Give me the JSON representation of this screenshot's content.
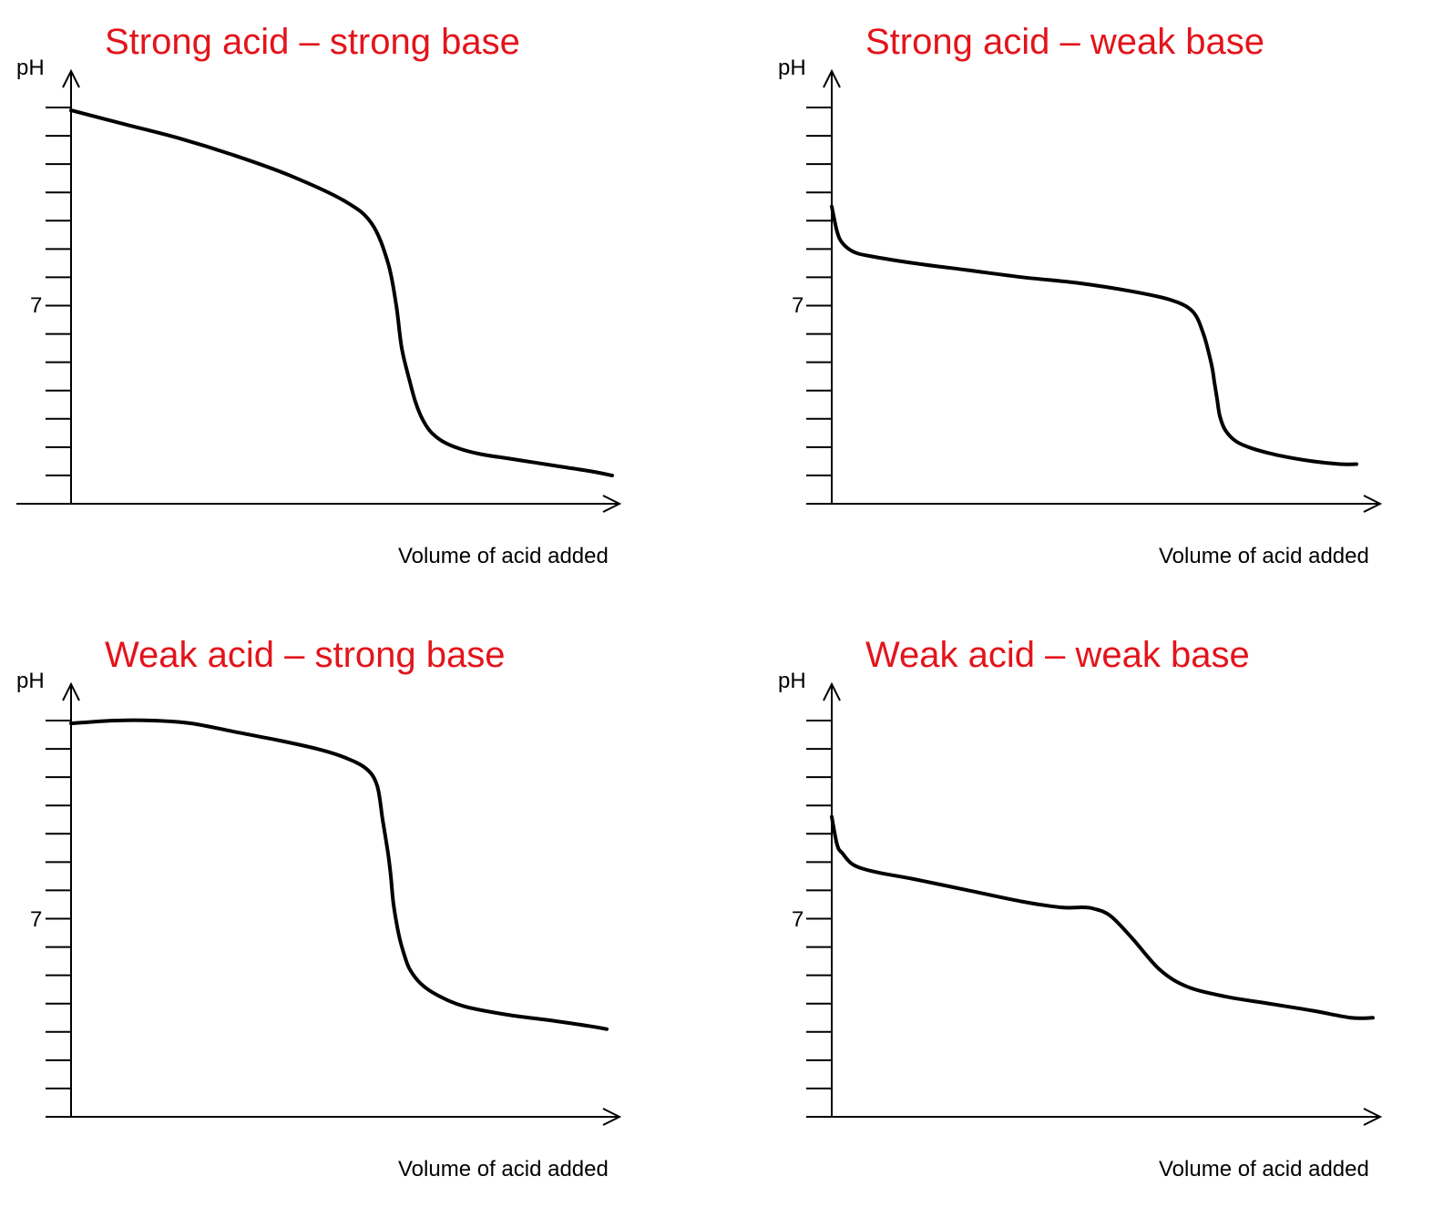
{
  "title_color": "#e3141b",
  "line_color": "#000000",
  "chart_data": [
    {
      "type": "line",
      "title": "Strong acid – strong base",
      "xlabel": "Volume of acid added",
      "ylabel": "pH",
      "ytick_labels": [
        {
          "value": 7,
          "label": "7"
        }
      ],
      "ylim": [
        0,
        14
      ],
      "xlim": [
        0,
        100
      ],
      "grid": false,
      "series": [
        {
          "x": [
            0,
            10,
            20,
            30,
            40,
            50,
            55,
            58,
            59.5,
            60.5,
            62,
            63,
            64,
            65,
            66,
            68,
            71,
            75,
            80,
            85,
            90,
            95,
            99
          ],
          "y": [
            13.9,
            13.4,
            12.9,
            12.3,
            11.6,
            10.7,
            9.9,
            8.5,
            7.0,
            5.5,
            4.3,
            3.6,
            3.1,
            2.75,
            2.5,
            2.2,
            1.95,
            1.75,
            1.6,
            1.45,
            1.3,
            1.15,
            1.0
          ]
        }
      ]
    },
    {
      "type": "line",
      "title": "Strong acid – weak base",
      "xlabel": "Volume of acid added",
      "ylabel": "pH",
      "ytick_labels": [
        {
          "value": 7,
          "label": "7"
        }
      ],
      "ylim": [
        0,
        14
      ],
      "xlim": [
        0,
        100
      ],
      "grid": false,
      "series": [
        {
          "x": [
            0,
            1,
            2,
            4,
            7,
            15,
            25,
            35,
            45,
            55,
            62,
            66,
            68,
            69.5,
            70,
            70.5,
            71,
            72,
            74,
            77,
            82,
            88,
            93,
            96
          ],
          "y": [
            10.5,
            9.6,
            9.2,
            8.9,
            8.75,
            8.5,
            8.25,
            8.0,
            7.8,
            7.5,
            7.2,
            6.8,
            6.0,
            4.9,
            4.3,
            3.7,
            3.1,
            2.6,
            2.2,
            1.95,
            1.7,
            1.5,
            1.4,
            1.4
          ]
        }
      ]
    },
    {
      "type": "line",
      "title": "Weak acid – strong base",
      "xlabel": "Volume of acid added",
      "ylabel": "pH",
      "ytick_labels": [
        {
          "value": 7,
          "label": "7"
        }
      ],
      "ylim": [
        0,
        14
      ],
      "xlim": [
        0,
        100
      ],
      "grid": false,
      "series": [
        {
          "x": [
            0,
            8,
            15,
            22,
            30,
            38,
            45,
            50,
            54,
            56,
            57,
            58,
            58.5,
            59,
            60,
            61,
            62,
            64,
            67,
            72,
            80,
            88,
            95,
            98
          ],
          "y": [
            13.9,
            14.0,
            14.0,
            13.9,
            13.6,
            13.3,
            13.0,
            12.7,
            12.3,
            11.7,
            10.5,
            9.3,
            8.5,
            7.5,
            6.4,
            5.7,
            5.2,
            4.7,
            4.3,
            3.9,
            3.6,
            3.4,
            3.2,
            3.1
          ]
        }
      ]
    },
    {
      "type": "line",
      "title": "Weak acid – weak base",
      "xlabel": "Volume of acid added",
      "ylabel": "pH",
      "ytick_labels": [
        {
          "value": 7,
          "label": "7"
        }
      ],
      "ylim": [
        0,
        14
      ],
      "xlim": [
        0,
        100
      ],
      "grid": false,
      "series": [
        {
          "x": [
            0,
            1,
            2,
            4,
            8,
            15,
            25,
            35,
            42,
            46,
            48,
            51,
            55,
            60,
            65,
            72,
            80,
            88,
            95,
            99
          ],
          "y": [
            10.6,
            9.6,
            9.3,
            8.9,
            8.65,
            8.4,
            8.0,
            7.6,
            7.4,
            7.4,
            7.35,
            7.1,
            6.3,
            5.2,
            4.6,
            4.25,
            4.0,
            3.75,
            3.5,
            3.5
          ]
        }
      ]
    }
  ]
}
